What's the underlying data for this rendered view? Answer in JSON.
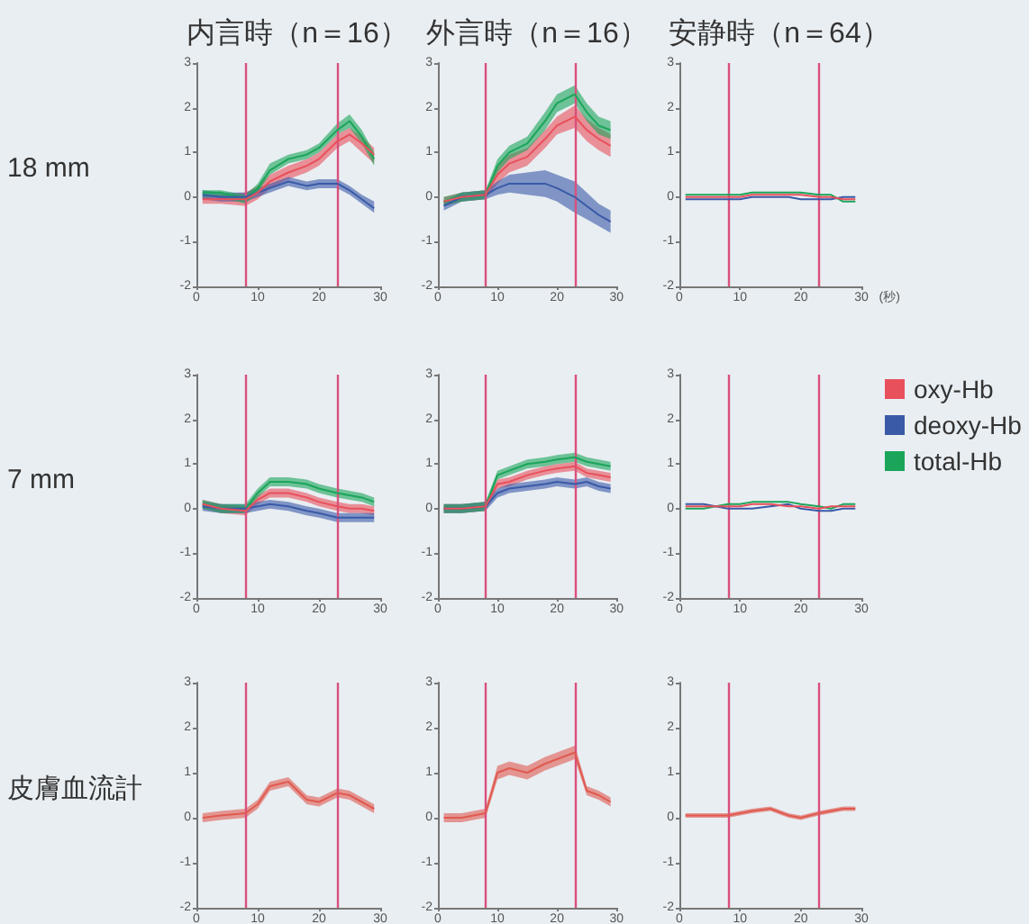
{
  "chart_data": [
    {
      "type": "line",
      "title": "内言時（n＝16）",
      "ylabel": "18 mm",
      "x": [
        1,
        4,
        8,
        10,
        12,
        15,
        18,
        20,
        23,
        25,
        27,
        29
      ],
      "xlim": [
        0,
        30
      ],
      "xticks": [
        0,
        10,
        20,
        30
      ],
      "ylim": [
        -2,
        3
      ],
      "yticks": [
        -2,
        -1,
        0,
        1,
        2,
        3
      ],
      "ref_lines": [
        {
          "axis": "x",
          "value": 8,
          "color": "#d9507c"
        },
        {
          "axis": "x",
          "value": 23,
          "color": "#d9507c"
        }
      ],
      "series": [
        {
          "color": "#e8505b",
          "values": [
            -0.05,
            -0.05,
            -0.05,
            0.1,
            0.35,
            0.55,
            0.7,
            0.85,
            1.25,
            1.4,
            1.2,
            0.95
          ],
          "lower": [
            -0.15,
            -0.15,
            -0.2,
            -0.05,
            0.2,
            0.4,
            0.55,
            0.7,
            1.1,
            1.25,
            1.0,
            0.75
          ],
          "upper": [
            0.05,
            0.05,
            0.1,
            0.25,
            0.5,
            0.7,
            0.85,
            1.0,
            1.4,
            1.55,
            1.35,
            1.1
          ]
        },
        {
          "color": "#3a5aa8",
          "values": [
            0.05,
            0,
            0,
            0.1,
            0.2,
            0.35,
            0.25,
            0.3,
            0.3,
            0.15,
            -0.05,
            -0.25
          ],
          "lower": [
            -0.05,
            -0.1,
            -0.1,
            0,
            0.1,
            0.25,
            0.15,
            0.2,
            0.2,
            0.05,
            -0.15,
            -0.35
          ],
          "upper": [
            0.15,
            0.1,
            0.1,
            0.2,
            0.3,
            0.45,
            0.35,
            0.4,
            0.4,
            0.25,
            0.05,
            -0.1
          ]
        },
        {
          "color": "#1aa55a",
          "values": [
            0.1,
            0.1,
            -0.05,
            0.2,
            0.6,
            0.85,
            0.95,
            1.1,
            1.5,
            1.7,
            1.35,
            0.85
          ],
          "lower": [
            0,
            0,
            -0.15,
            0.1,
            0.5,
            0.75,
            0.85,
            1.0,
            1.4,
            1.55,
            1.2,
            0.7
          ],
          "upper": [
            0.15,
            0.15,
            0.05,
            0.3,
            0.75,
            0.95,
            1.05,
            1.2,
            1.65,
            1.85,
            1.5,
            1.0
          ]
        }
      ]
    },
    {
      "type": "line",
      "title": "外言時（n＝16）",
      "x": [
        1,
        4,
        8,
        10,
        12,
        15,
        18,
        20,
        23,
        25,
        27,
        29
      ],
      "xlim": [
        0,
        30
      ],
      "xticks": [
        0,
        10,
        20,
        30
      ],
      "ylim": [
        -2,
        3
      ],
      "yticks": [
        -2,
        -1,
        0,
        1,
        2,
        3
      ],
      "ref_lines": [
        {
          "axis": "x",
          "value": 8,
          "color": "#d9507c"
        },
        {
          "axis": "x",
          "value": 23,
          "color": "#d9507c"
        }
      ],
      "series": [
        {
          "color": "#e8505b",
          "values": [
            -0.1,
            0,
            0.05,
            0.5,
            0.75,
            0.9,
            1.3,
            1.6,
            1.8,
            1.5,
            1.3,
            1.15
          ],
          "lower": [
            -0.2,
            -0.1,
            -0.05,
            0.3,
            0.55,
            0.7,
            1.1,
            1.4,
            1.55,
            1.25,
            1.05,
            0.9
          ],
          "upper": [
            0,
            0.1,
            0.15,
            0.7,
            0.95,
            1.1,
            1.5,
            1.8,
            2.05,
            1.75,
            1.55,
            1.4
          ]
        },
        {
          "color": "#3a5aa8",
          "values": [
            -0.2,
            0,
            0.05,
            0.2,
            0.3,
            0.3,
            0.3,
            0.2,
            0,
            -0.2,
            -0.4,
            -0.55
          ],
          "lower": [
            -0.3,
            -0.1,
            -0.05,
            0.05,
            0.1,
            0.05,
            0,
            -0.1,
            -0.35,
            -0.5,
            -0.65,
            -0.8
          ],
          "upper": [
            -0.1,
            0.1,
            0.15,
            0.35,
            0.5,
            0.55,
            0.6,
            0.5,
            0.35,
            0.1,
            -0.15,
            -0.3
          ]
        },
        {
          "color": "#1aa55a",
          "values": [
            -0.1,
            0,
            0.05,
            0.7,
            1.0,
            1.2,
            1.7,
            2.1,
            2.3,
            1.9,
            1.6,
            1.5
          ],
          "lower": [
            -0.2,
            -0.1,
            -0.05,
            0.55,
            0.85,
            1.05,
            1.5,
            1.9,
            2.1,
            1.7,
            1.4,
            1.3
          ],
          "upper": [
            0,
            0.1,
            0.15,
            0.85,
            1.15,
            1.35,
            1.9,
            2.3,
            2.5,
            2.1,
            1.8,
            1.7
          ]
        }
      ]
    },
    {
      "type": "line",
      "title": "安静時（n＝64）",
      "xlabel": "(秒)",
      "x": [
        1,
        4,
        8,
        10,
        12,
        15,
        18,
        20,
        23,
        25,
        27,
        29
      ],
      "xlim": [
        0,
        30
      ],
      "xticks": [
        0,
        10,
        20,
        30
      ],
      "ylim": [
        -2,
        3
      ],
      "yticks": [
        -2,
        -1,
        0,
        1,
        2,
        3
      ],
      "ref_lines": [
        {
          "axis": "x",
          "value": 8,
          "color": "#d9507c"
        },
        {
          "axis": "x",
          "value": 23,
          "color": "#d9507c"
        }
      ],
      "series": [
        {
          "color": "#e8505b",
          "values": [
            0,
            0,
            0,
            0,
            0.05,
            0.05,
            0.05,
            0.05,
            0,
            0,
            -0.05,
            -0.05
          ]
        },
        {
          "color": "#3a5aa8",
          "values": [
            -0.05,
            -0.05,
            -0.05,
            -0.05,
            0,
            0,
            0,
            -0.05,
            -0.05,
            -0.05,
            0,
            0
          ]
        },
        {
          "color": "#1aa55a",
          "values": [
            0.05,
            0.05,
            0.05,
            0.05,
            0.1,
            0.1,
            0.1,
            0.1,
            0.05,
            0.05,
            -0.1,
            -0.1
          ]
        }
      ]
    },
    {
      "type": "line",
      "ylabel": "7 mm",
      "x": [
        1,
        4,
        8,
        10,
        12,
        15,
        18,
        20,
        23,
        25,
        27,
        29
      ],
      "xlim": [
        0,
        30
      ],
      "xticks": [
        0,
        10,
        20,
        30
      ],
      "ylim": [
        -2,
        3
      ],
      "yticks": [
        -2,
        -1,
        0,
        1,
        2,
        3
      ],
      "ref_lines": [
        {
          "axis": "x",
          "value": 8,
          "color": "#d9507c"
        },
        {
          "axis": "x",
          "value": 23,
          "color": "#d9507c"
        }
      ],
      "series": [
        {
          "color": "#e8505b",
          "values": [
            0.1,
            0,
            -0.05,
            0.2,
            0.35,
            0.35,
            0.25,
            0.15,
            0.05,
            0,
            0,
            -0.05
          ],
          "lower": [
            0,
            -0.1,
            -0.15,
            0.1,
            0.25,
            0.25,
            0.15,
            0.05,
            -0.05,
            -0.1,
            -0.1,
            -0.15
          ],
          "upper": [
            0.2,
            0.1,
            0.05,
            0.3,
            0.45,
            0.45,
            0.35,
            0.25,
            0.15,
            0.1,
            0.1,
            0.05
          ]
        },
        {
          "color": "#3a5aa8",
          "values": [
            0.05,
            0,
            0,
            0.05,
            0.1,
            0.05,
            -0.05,
            -0.1,
            -0.2,
            -0.2,
            -0.2,
            -0.2
          ],
          "lower": [
            -0.05,
            -0.1,
            -0.1,
            -0.05,
            0,
            -0.05,
            -0.15,
            -0.2,
            -0.3,
            -0.3,
            -0.3,
            -0.3
          ],
          "upper": [
            0.15,
            0.1,
            0.1,
            0.15,
            0.2,
            0.15,
            0.05,
            0,
            -0.1,
            -0.1,
            -0.1,
            -0.1
          ]
        },
        {
          "color": "#1aa55a",
          "values": [
            0.1,
            0,
            0,
            0.35,
            0.6,
            0.6,
            0.55,
            0.45,
            0.35,
            0.3,
            0.25,
            0.15
          ],
          "lower": [
            0,
            -0.1,
            -0.1,
            0.25,
            0.5,
            0.5,
            0.45,
            0.35,
            0.25,
            0.2,
            0.15,
            0.05
          ],
          "upper": [
            0.2,
            0.1,
            0.1,
            0.45,
            0.7,
            0.7,
            0.65,
            0.55,
            0.45,
            0.4,
            0.35,
            0.25
          ]
        }
      ]
    },
    {
      "type": "line",
      "x": [
        1,
        4,
        8,
        10,
        12,
        15,
        18,
        20,
        23,
        25,
        27,
        29
      ],
      "xlim": [
        0,
        30
      ],
      "xticks": [
        0,
        10,
        20,
        30
      ],
      "ylim": [
        -2,
        3
      ],
      "yticks": [
        -2,
        -1,
        0,
        1,
        2,
        3
      ],
      "ref_lines": [
        {
          "axis": "x",
          "value": 8,
          "color": "#d9507c"
        },
        {
          "axis": "x",
          "value": 23,
          "color": "#d9507c"
        }
      ],
      "series": [
        {
          "color": "#e8505b",
          "values": [
            0,
            0,
            0.05,
            0.55,
            0.6,
            0.75,
            0.85,
            0.9,
            0.95,
            0.8,
            0.75,
            0.7
          ],
          "lower": [
            -0.1,
            -0.1,
            -0.05,
            0.45,
            0.5,
            0.65,
            0.75,
            0.8,
            0.85,
            0.7,
            0.65,
            0.6
          ],
          "upper": [
            0.1,
            0.1,
            0.15,
            0.65,
            0.7,
            0.85,
            0.95,
            1.0,
            1.05,
            0.9,
            0.85,
            0.8
          ]
        },
        {
          "color": "#3a5aa8",
          "values": [
            0,
            0,
            0.05,
            0.35,
            0.45,
            0.5,
            0.55,
            0.6,
            0.55,
            0.6,
            0.5,
            0.45
          ],
          "lower": [
            -0.1,
            -0.1,
            -0.05,
            0.25,
            0.35,
            0.4,
            0.45,
            0.5,
            0.45,
            0.5,
            0.4,
            0.35
          ],
          "upper": [
            0.1,
            0.1,
            0.15,
            0.45,
            0.55,
            0.6,
            0.65,
            0.7,
            0.65,
            0.7,
            0.6,
            0.55
          ]
        },
        {
          "color": "#1aa55a",
          "values": [
            0,
            0,
            0.05,
            0.75,
            0.85,
            1.0,
            1.05,
            1.1,
            1.15,
            1.05,
            1.0,
            0.95
          ],
          "lower": [
            -0.1,
            -0.1,
            -0.05,
            0.65,
            0.75,
            0.9,
            0.95,
            1.0,
            1.05,
            0.95,
            0.9,
            0.85
          ],
          "upper": [
            0.1,
            0.1,
            0.15,
            0.85,
            0.95,
            1.1,
            1.15,
            1.2,
            1.25,
            1.15,
            1.1,
            1.05
          ]
        }
      ]
    },
    {
      "type": "line",
      "legend": "right",
      "x": [
        1,
        4,
        8,
        10,
        12,
        15,
        18,
        20,
        23,
        25,
        27,
        29
      ],
      "xlim": [
        0,
        30
      ],
      "xticks": [
        0,
        10,
        20,
        30
      ],
      "ylim": [
        -2,
        3
      ],
      "yticks": [
        -2,
        -1,
        0,
        1,
        2,
        3
      ],
      "ref_lines": [
        {
          "axis": "x",
          "value": 8,
          "color": "#d9507c"
        },
        {
          "axis": "x",
          "value": 23,
          "color": "#d9507c"
        }
      ],
      "series": [
        {
          "name": "oxy-Hb",
          "color": "#e8505b",
          "values": [
            0.05,
            0.05,
            0.05,
            0.05,
            0.1,
            0.1,
            0.05,
            0.05,
            0,
            0.05,
            0.05,
            0.05
          ]
        },
        {
          "name": "deoxy-Hb",
          "color": "#3a5aa8",
          "values": [
            0.1,
            0.1,
            0,
            0,
            0,
            0.05,
            0.1,
            0,
            -0.05,
            -0.05,
            0,
            0
          ]
        },
        {
          "name": "total-Hb",
          "color": "#1aa55a",
          "values": [
            0,
            0,
            0.1,
            0.1,
            0.15,
            0.15,
            0.15,
            0.1,
            0.05,
            0,
            0.1,
            0.1
          ]
        }
      ]
    },
    {
      "type": "line",
      "ylabel": "皮膚血流計",
      "x": [
        1,
        4,
        8,
        10,
        12,
        15,
        18,
        20,
        23,
        25,
        27,
        29
      ],
      "xlim": [
        0,
        30
      ],
      "xticks": [
        0,
        10,
        20,
        30
      ],
      "ylim": [
        -2,
        3
      ],
      "yticks": [
        -2,
        -1,
        0,
        1,
        2,
        3
      ],
      "ref_lines": [
        {
          "axis": "x",
          "value": 8,
          "color": "#d9507c"
        },
        {
          "axis": "x",
          "value": 23,
          "color": "#d9507c"
        }
      ],
      "series": [
        {
          "color": "#e05a50",
          "values": [
            0,
            0.05,
            0.1,
            0.3,
            0.7,
            0.8,
            0.4,
            0.35,
            0.55,
            0.5,
            0.35,
            0.2
          ],
          "lower": [
            -0.1,
            -0.05,
            0,
            0.2,
            0.6,
            0.7,
            0.3,
            0.25,
            0.45,
            0.4,
            0.25,
            0.1
          ],
          "upper": [
            0.1,
            0.15,
            0.2,
            0.4,
            0.8,
            0.9,
            0.5,
            0.45,
            0.65,
            0.6,
            0.45,
            0.3
          ]
        }
      ]
    },
    {
      "type": "line",
      "x": [
        1,
        4,
        8,
        10,
        12,
        15,
        18,
        20,
        23,
        25,
        27,
        29
      ],
      "xlim": [
        0,
        30
      ],
      "xticks": [
        0,
        10,
        20,
        30
      ],
      "ylim": [
        -2,
        3
      ],
      "yticks": [
        -2,
        -1,
        0,
        1,
        2,
        3
      ],
      "ref_lines": [
        {
          "axis": "x",
          "value": 8,
          "color": "#d9507c"
        },
        {
          "axis": "x",
          "value": 23,
          "color": "#d9507c"
        }
      ],
      "series": [
        {
          "color": "#e05a50",
          "values": [
            0,
            0,
            0.1,
            1.0,
            1.1,
            1.0,
            1.2,
            1.3,
            1.45,
            0.6,
            0.5,
            0.35
          ],
          "lower": [
            -0.1,
            -0.1,
            0,
            0.85,
            0.95,
            0.85,
            1.05,
            1.15,
            1.3,
            0.5,
            0.4,
            0.25
          ],
          "upper": [
            0.1,
            0.1,
            0.2,
            1.15,
            1.25,
            1.15,
            1.35,
            1.45,
            1.6,
            0.7,
            0.6,
            0.45
          ]
        }
      ]
    },
    {
      "type": "line",
      "x": [
        1,
        4,
        8,
        10,
        12,
        15,
        18,
        20,
        23,
        25,
        27,
        29
      ],
      "xlim": [
        0,
        30
      ],
      "xticks": [
        0,
        10,
        20,
        30
      ],
      "ylim": [
        -2,
        3
      ],
      "yticks": [
        -2,
        -1,
        0,
        1,
        2,
        3
      ],
      "ref_lines": [
        {
          "axis": "x",
          "value": 8,
          "color": "#d9507c"
        },
        {
          "axis": "x",
          "value": 23,
          "color": "#d9507c"
        }
      ],
      "series": [
        {
          "color": "#e05a50",
          "values": [
            0.05,
            0.05,
            0.05,
            0.1,
            0.15,
            0.2,
            0.05,
            0,
            0.1,
            0.15,
            0.2,
            0.2
          ],
          "lower": [
            0,
            0,
            0,
            0.05,
            0.1,
            0.15,
            0,
            -0.05,
            0.05,
            0.1,
            0.15,
            0.15
          ],
          "upper": [
            0.1,
            0.1,
            0.1,
            0.15,
            0.2,
            0.25,
            0.1,
            0.05,
            0.15,
            0.2,
            0.25,
            0.25
          ]
        }
      ]
    }
  ]
}
